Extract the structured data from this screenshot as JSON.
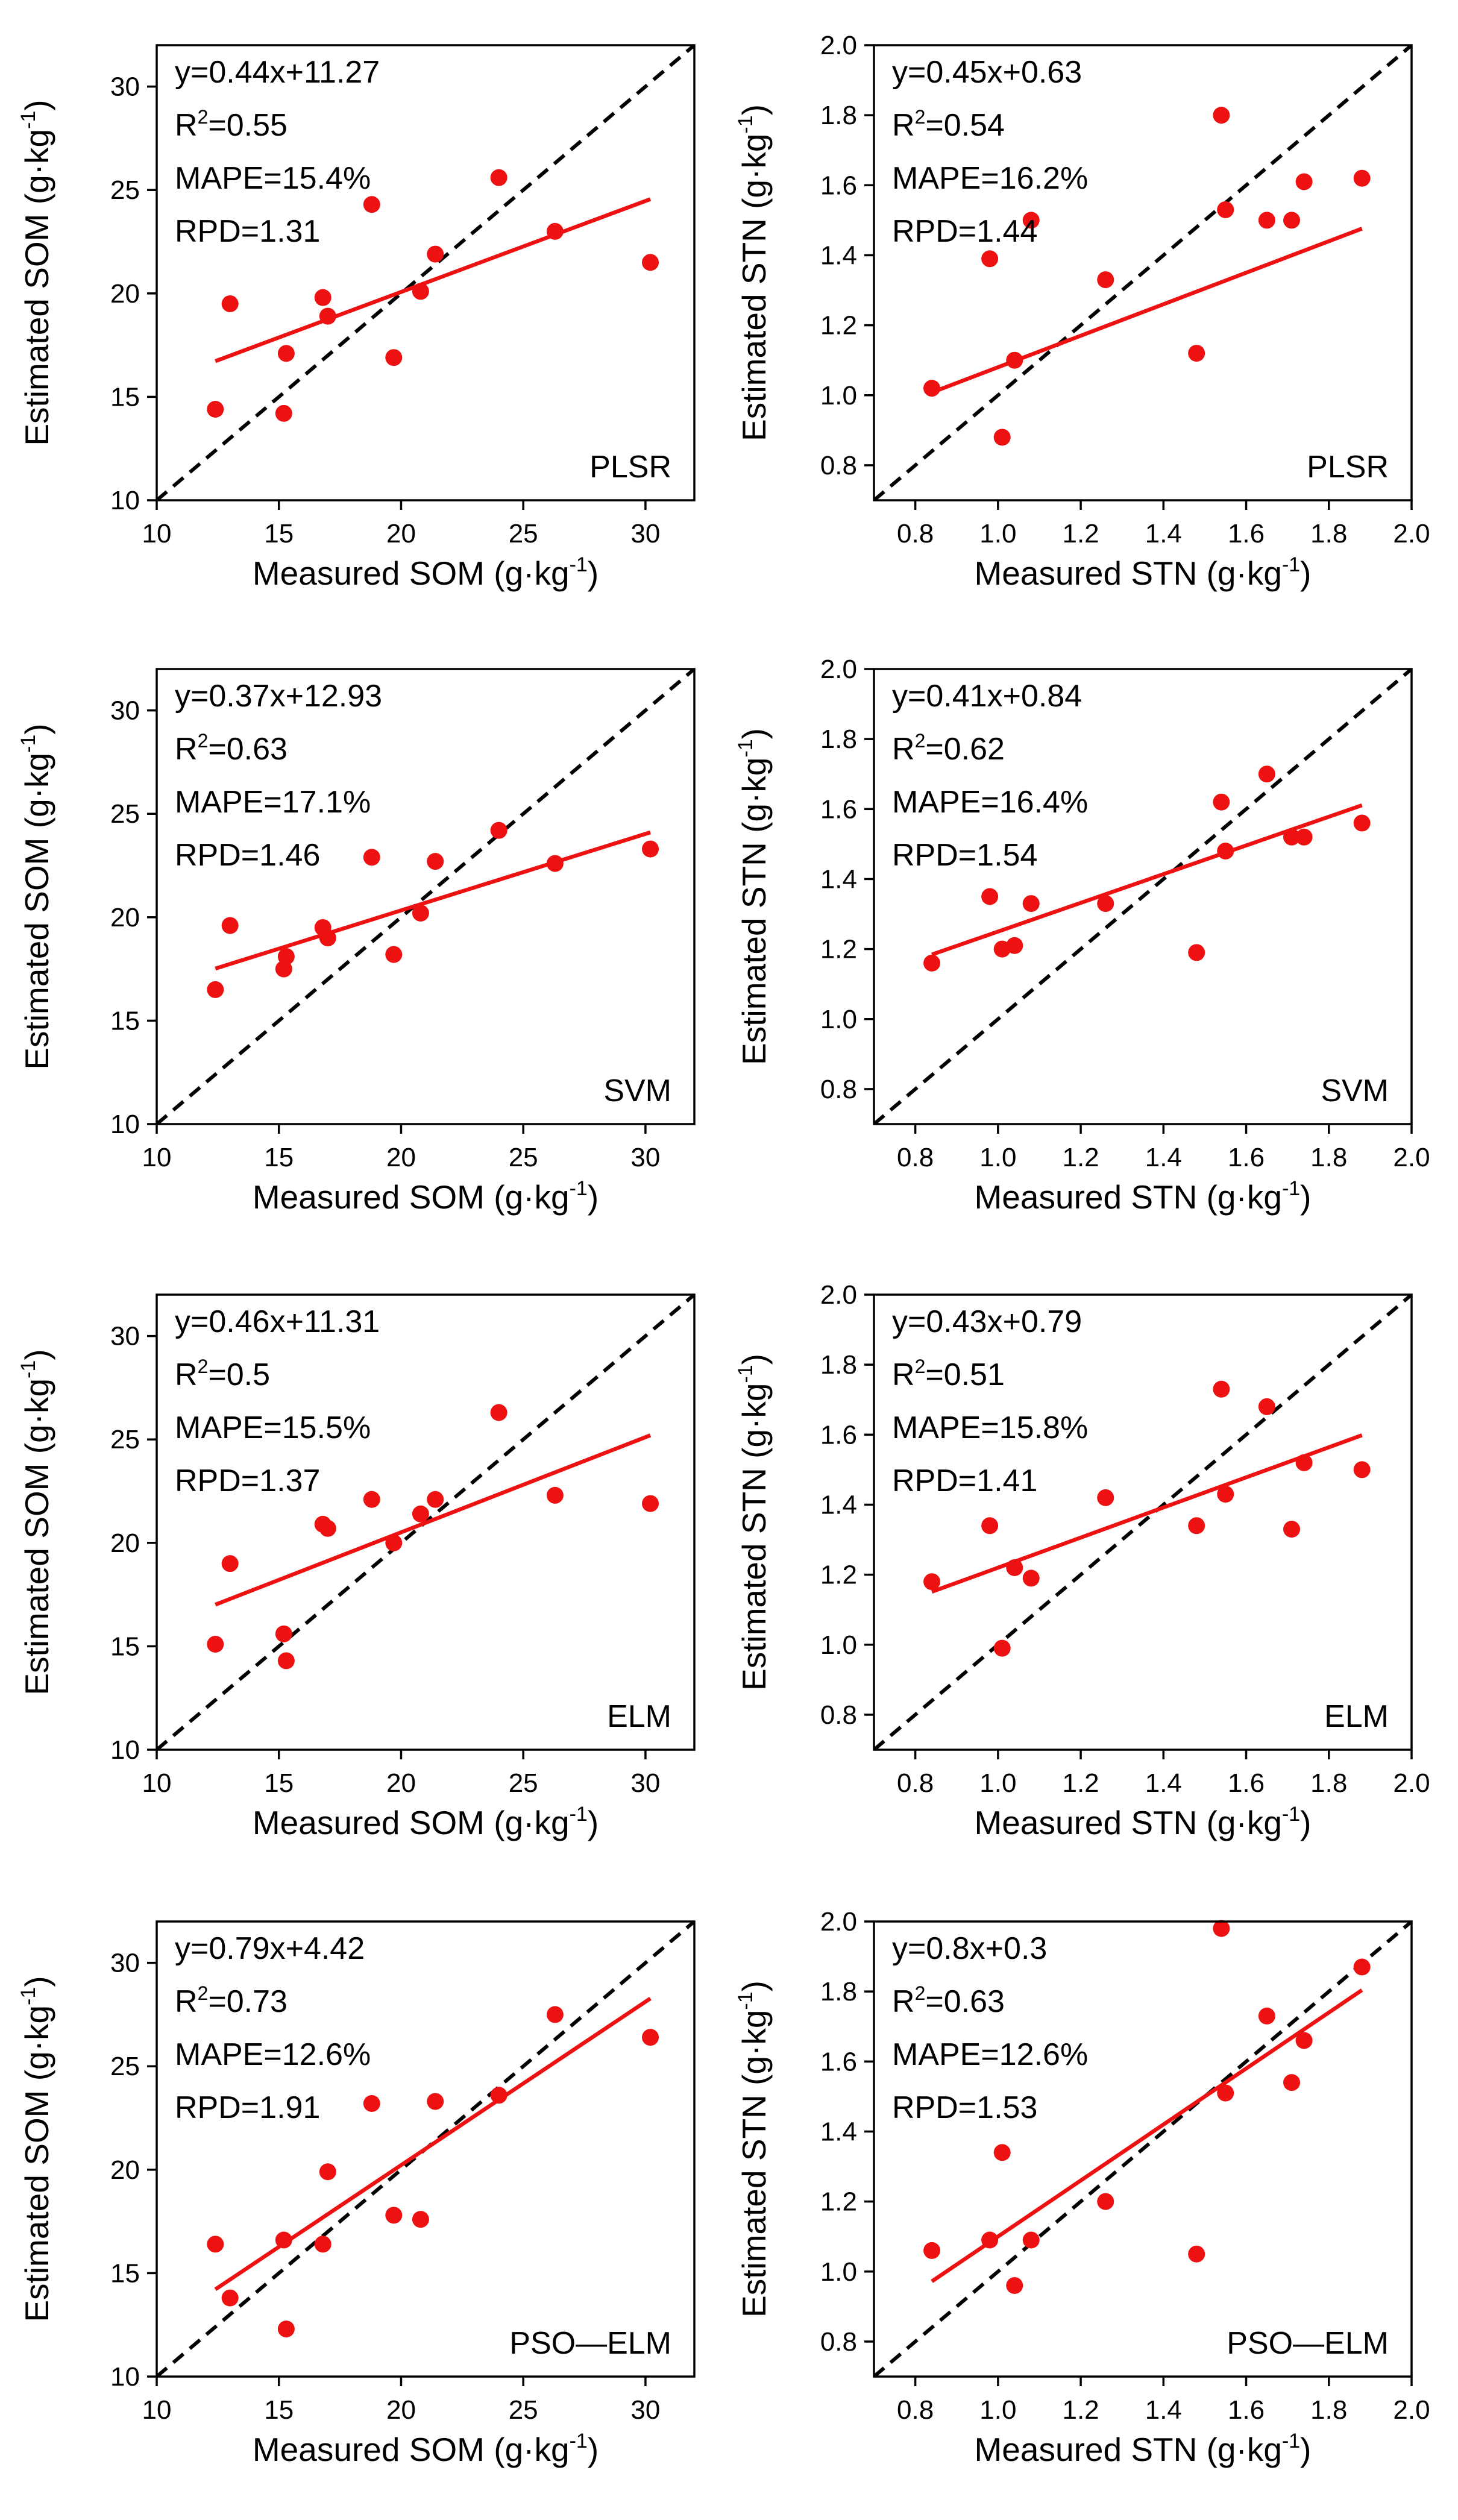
{
  "chart_data": [
    {
      "type": "scatter",
      "model": "PLSR",
      "xlabel": "Measured SOM (g·kg",
      "xlabel_sup": "-1",
      "xlabel_end": ")",
      "ylabel": "Estimated SOM (g·kg",
      "ylabel_sup": "-1",
      "ylabel_end": ")",
      "xlim": [
        10,
        32
      ],
      "ylim": [
        10,
        32
      ],
      "xticks": [
        "10",
        "15",
        "20",
        "25",
        "30"
      ],
      "xtick_values": [
        10,
        15,
        20,
        25,
        30
      ],
      "yticks": [
        "10",
        "15",
        "20",
        "25",
        "30"
      ],
      "ytick_values": [
        10,
        15,
        20,
        25,
        30
      ],
      "annotations": {
        "equation": "y=0.44x+11.27",
        "r2_label": "R",
        "r2_sup": "2",
        "r2_value": "=0.55",
        "mape": "MAPE=15.4%",
        "rpd": "RPD=1.31"
      },
      "fit": {
        "slope": 0.44,
        "intercept": 11.27,
        "x_range": [
          12.4,
          30.2
        ]
      },
      "points": {
        "x": [
          12.4,
          13.0,
          15.2,
          15.3,
          16.8,
          17.0,
          18.8,
          19.7,
          20.8,
          21.4,
          24.0,
          26.3,
          30.2
        ],
        "y": [
          14.4,
          19.5,
          14.2,
          17.1,
          19.8,
          18.9,
          24.3,
          16.9,
          20.1,
          21.9,
          25.6,
          23.0,
          21.5
        ]
      }
    },
    {
      "type": "scatter",
      "model": "PLSR",
      "xlabel": "Measured STN (g·kg",
      "xlabel_sup": "-1",
      "xlabel_end": ")",
      "ylabel": "Estimated STN (g·kg",
      "ylabel_sup": "-1",
      "ylabel_end": ")",
      "xlim": [
        0.7,
        2.0
      ],
      "ylim": [
        0.7,
        2.0
      ],
      "xticks": [
        "0.8",
        "1.0",
        "1.2",
        "1.4",
        "1.6",
        "1.8",
        "2.0"
      ],
      "xtick_values": [
        0.8,
        1.0,
        1.2,
        1.4,
        1.6,
        1.8,
        2.0
      ],
      "yticks": [
        "0.8",
        "1.0",
        "1.2",
        "1.4",
        "1.6",
        "1.8",
        "2.0"
      ],
      "ytick_values": [
        0.8,
        1.0,
        1.2,
        1.4,
        1.6,
        1.8,
        2.0
      ],
      "annotations": {
        "equation": "y=0.45x+0.63",
        "r2_label": "R",
        "r2_sup": "2",
        "r2_value": "=0.54",
        "mape": "MAPE=16.2%",
        "rpd": "RPD=1.44"
      },
      "fit": {
        "slope": 0.45,
        "intercept": 0.63,
        "x_range": [
          0.84,
          1.88
        ]
      },
      "points": {
        "x": [
          0.84,
          0.98,
          1.01,
          1.04,
          1.08,
          1.26,
          1.48,
          1.54,
          1.55,
          1.65,
          1.71,
          1.74,
          1.88
        ],
        "y": [
          1.02,
          1.39,
          0.88,
          1.1,
          1.5,
          1.33,
          1.12,
          1.8,
          1.53,
          1.5,
          1.5,
          1.61,
          1.62
        ]
      }
    },
    {
      "type": "scatter",
      "model": "SVM",
      "xlabel": "Measured SOM (g·kg",
      "xlabel_sup": "-1",
      "xlabel_end": ")",
      "ylabel": "Estimated SOM (g·kg",
      "ylabel_sup": "-1",
      "ylabel_end": ")",
      "xlim": [
        10,
        32
      ],
      "ylim": [
        10,
        32
      ],
      "xticks": [
        "10",
        "15",
        "20",
        "25",
        "30"
      ],
      "xtick_values": [
        10,
        15,
        20,
        25,
        30
      ],
      "yticks": [
        "10",
        "15",
        "20",
        "25",
        "30"
      ],
      "ytick_values": [
        10,
        15,
        20,
        25,
        30
      ],
      "annotations": {
        "equation": "y=0.37x+12.93",
        "r2_label": "R",
        "r2_sup": "2",
        "r2_value": "=0.63",
        "mape": "MAPE=17.1%",
        "rpd": "RPD=1.46"
      },
      "fit": {
        "slope": 0.37,
        "intercept": 12.93,
        "x_range": [
          12.4,
          30.2
        ]
      },
      "points": {
        "x": [
          12.4,
          13.0,
          15.2,
          15.3,
          16.8,
          17.0,
          18.8,
          19.7,
          20.8,
          21.4,
          24.0,
          26.3,
          30.2
        ],
        "y": [
          16.5,
          19.6,
          17.5,
          18.1,
          19.5,
          19.0,
          22.9,
          18.2,
          20.2,
          22.7,
          24.2,
          22.6,
          23.3
        ]
      }
    },
    {
      "type": "scatter",
      "model": "SVM",
      "xlabel": "Measured STN (g·kg",
      "xlabel_sup": "-1",
      "xlabel_end": ")",
      "ylabel": "Estimated STN (g·kg",
      "ylabel_sup": "-1",
      "ylabel_end": ")",
      "xlim": [
        0.7,
        2.0
      ],
      "ylim": [
        0.7,
        2.0
      ],
      "xticks": [
        "0.8",
        "1.0",
        "1.2",
        "1.4",
        "1.6",
        "1.8",
        "2.0"
      ],
      "xtick_values": [
        0.8,
        1.0,
        1.2,
        1.4,
        1.6,
        1.8,
        2.0
      ],
      "yticks": [
        "0.8",
        "1.0",
        "1.2",
        "1.4",
        "1.6",
        "1.8",
        "2.0"
      ],
      "ytick_values": [
        0.8,
        1.0,
        1.2,
        1.4,
        1.6,
        1.8,
        2.0
      ],
      "annotations": {
        "equation": "y=0.41x+0.84",
        "r2_label": "R",
        "r2_sup": "2",
        "r2_value": "=0.62",
        "mape": "MAPE=16.4%",
        "rpd": "RPD=1.54"
      },
      "fit": {
        "slope": 0.41,
        "intercept": 0.84,
        "x_range": [
          0.84,
          1.88
        ]
      },
      "points": {
        "x": [
          0.84,
          0.98,
          1.01,
          1.04,
          1.08,
          1.26,
          1.48,
          1.54,
          1.55,
          1.65,
          1.71,
          1.74,
          1.88
        ],
        "y": [
          1.16,
          1.35,
          1.2,
          1.21,
          1.33,
          1.33,
          1.19,
          1.62,
          1.48,
          1.7,
          1.52,
          1.52,
          1.56
        ]
      }
    },
    {
      "type": "scatter",
      "model": "ELM",
      "xlabel": "Measured SOM (g·kg",
      "xlabel_sup": "-1",
      "xlabel_end": ")",
      "ylabel": "Estimated SOM (g·kg",
      "ylabel_sup": "-1",
      "ylabel_end": ")",
      "xlim": [
        10,
        32
      ],
      "ylim": [
        10,
        32
      ],
      "xticks": [
        "10",
        "15",
        "20",
        "25",
        "30"
      ],
      "xtick_values": [
        10,
        15,
        20,
        25,
        30
      ],
      "yticks": [
        "10",
        "15",
        "20",
        "25",
        "30"
      ],
      "ytick_values": [
        10,
        15,
        20,
        25,
        30
      ],
      "annotations": {
        "equation": "y=0.46x+11.31",
        "r2_label": "R",
        "r2_sup": "2",
        "r2_value": "=0.5",
        "mape": "MAPE=15.5%",
        "rpd": "RPD=1.37"
      },
      "fit": {
        "slope": 0.46,
        "intercept": 11.31,
        "x_range": [
          12.4,
          30.2
        ]
      },
      "points": {
        "x": [
          12.4,
          13.0,
          15.2,
          15.3,
          16.8,
          17.0,
          18.8,
          19.7,
          20.8,
          21.4,
          24.0,
          26.3,
          30.2
        ],
        "y": [
          15.1,
          19.0,
          15.6,
          14.3,
          20.9,
          20.7,
          22.1,
          20.0,
          21.4,
          22.1,
          26.3,
          22.3,
          21.9
        ]
      }
    },
    {
      "type": "scatter",
      "model": "ELM",
      "xlabel": "Measured STN (g·kg",
      "xlabel_sup": "-1",
      "xlabel_end": ")",
      "ylabel": "Estimated STN (g·kg",
      "ylabel_sup": "-1",
      "ylabel_end": ")",
      "xlim": [
        0.7,
        2.0
      ],
      "ylim": [
        0.7,
        2.0
      ],
      "xticks": [
        "0.8",
        "1.0",
        "1.2",
        "1.4",
        "1.6",
        "1.8",
        "2.0"
      ],
      "xtick_values": [
        0.8,
        1.0,
        1.2,
        1.4,
        1.6,
        1.8,
        2.0
      ],
      "yticks": [
        "0.8",
        "1.0",
        "1.2",
        "1.4",
        "1.6",
        "1.8",
        "2.0"
      ],
      "ytick_values": [
        0.8,
        1.0,
        1.2,
        1.4,
        1.6,
        1.8,
        2.0
      ],
      "annotations": {
        "equation": "y=0.43x+0.79",
        "r2_label": "R",
        "r2_sup": "2",
        "r2_value": "=0.51",
        "mape": "MAPE=15.8%",
        "rpd": "RPD=1.41"
      },
      "fit": {
        "slope": 0.43,
        "intercept": 0.79,
        "x_range": [
          0.84,
          1.88
        ]
      },
      "points": {
        "x": [
          0.84,
          0.98,
          1.01,
          1.04,
          1.08,
          1.26,
          1.48,
          1.54,
          1.55,
          1.65,
          1.71,
          1.74,
          1.88
        ],
        "y": [
          1.18,
          1.34,
          0.99,
          1.22,
          1.19,
          1.42,
          1.34,
          1.73,
          1.43,
          1.68,
          1.33,
          1.52,
          1.5
        ]
      }
    },
    {
      "type": "scatter",
      "model": "PSO—ELM",
      "xlabel": "Measured SOM (g·kg",
      "xlabel_sup": "-1",
      "xlabel_end": ")",
      "ylabel": "Estimated SOM (g·kg",
      "ylabel_sup": "-1",
      "ylabel_end": ")",
      "xlim": [
        10,
        32
      ],
      "ylim": [
        10,
        32
      ],
      "xticks": [
        "10",
        "15",
        "20",
        "25",
        "30"
      ],
      "xtick_values": [
        10,
        15,
        20,
        25,
        30
      ],
      "yticks": [
        "10",
        "15",
        "20",
        "25",
        "30"
      ],
      "ytick_values": [
        10,
        15,
        20,
        25,
        30
      ],
      "annotations": {
        "equation": "y=0.79x+4.42",
        "r2_label": "R",
        "r2_sup": "2",
        "r2_value": "=0.73",
        "mape": "MAPE=12.6%",
        "rpd": "RPD=1.91"
      },
      "fit": {
        "slope": 0.79,
        "intercept": 4.42,
        "x_range": [
          12.4,
          30.2
        ]
      },
      "points": {
        "x": [
          12.4,
          13.0,
          15.2,
          15.3,
          16.8,
          17.0,
          18.8,
          19.7,
          20.8,
          21.4,
          24.0,
          26.3,
          30.2
        ],
        "y": [
          16.4,
          13.8,
          16.6,
          12.3,
          16.4,
          19.9,
          23.2,
          17.8,
          17.6,
          23.3,
          23.6,
          27.5,
          26.4
        ]
      }
    },
    {
      "type": "scatter",
      "model": "PSO—ELM",
      "xlabel": "Measured STN (g·kg",
      "xlabel_sup": "-1",
      "xlabel_end": ")",
      "ylabel": "Estimated STN (g·kg",
      "ylabel_sup": "-1",
      "ylabel_end": ")",
      "xlim": [
        0.7,
        2.0
      ],
      "ylim": [
        0.7,
        2.0
      ],
      "xticks": [
        "0.8",
        "1.0",
        "1.2",
        "1.4",
        "1.6",
        "1.8",
        "2.0"
      ],
      "xtick_values": [
        0.8,
        1.0,
        1.2,
        1.4,
        1.6,
        1.8,
        2.0
      ],
      "yticks": [
        "0.8",
        "1.0",
        "1.2",
        "1.4",
        "1.6",
        "1.8",
        "2.0"
      ],
      "ytick_values": [
        0.8,
        1.0,
        1.2,
        1.4,
        1.6,
        1.8,
        2.0
      ],
      "annotations": {
        "equation": "y=0.8x+0.3",
        "r2_label": "R",
        "r2_sup": "2",
        "r2_value": "=0.63",
        "mape": "MAPE=12.6%",
        "rpd": "RPD=1.53"
      },
      "fit": {
        "slope": 0.8,
        "intercept": 0.3,
        "x_range": [
          0.84,
          1.88
        ]
      },
      "points": {
        "x": [
          0.84,
          0.98,
          1.01,
          1.04,
          1.08,
          1.26,
          1.48,
          1.54,
          1.55,
          1.65,
          1.71,
          1.74,
          1.88
        ],
        "y": [
          1.06,
          1.09,
          1.34,
          0.96,
          1.09,
          1.2,
          1.05,
          1.98,
          1.51,
          1.73,
          1.54,
          1.66,
          1.87
        ]
      }
    }
  ],
  "colors": {
    "points": "#ee1111",
    "fit_line": "#ee1111",
    "identity_line": "#000000",
    "axes": "#000000"
  },
  "identity_line_style": "dashed 1:1"
}
